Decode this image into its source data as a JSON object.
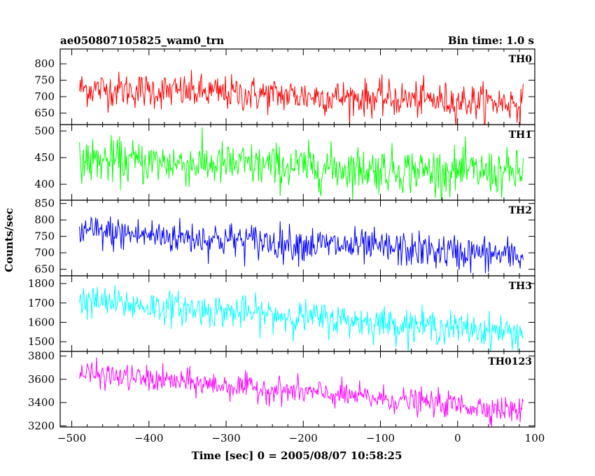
{
  "chart_data": {
    "type": "line",
    "title": "ae050807105825_wam0_trn",
    "subtitle": "Bin time: 1.0 s",
    "xlabel": "Time [sec] 0 = 2005/08/07 10:58:25",
    "ylabel": "Counts/sec",
    "xlim": [
      -515,
      100
    ],
    "x_ticks": [
      -500,
      -400,
      -300,
      -200,
      -100,
      0,
      100
    ],
    "x_range": [
      -490,
      85
    ],
    "bin_time": 1.0,
    "grid": false,
    "panels": [
      {
        "name": "TH0",
        "color": "#ff0000",
        "ylim": [
          615,
          845
        ],
        "yticks": [
          650,
          700,
          750,
          800
        ],
        "trend_start": 725,
        "trend_end": 680,
        "noise_sd": 27
      },
      {
        "name": "TH1",
        "color": "#00ff00",
        "ylim": [
          370,
          512
        ],
        "yticks": [
          400,
          450,
          500
        ],
        "trend_start": 445,
        "trend_end": 420,
        "noise_sd": 21
      },
      {
        "name": "TH2",
        "color": "#0000ff",
        "ylim": [
          630,
          860
        ],
        "yticks": [
          650,
          700,
          750,
          800,
          850
        ],
        "trend_start": 765,
        "trend_end": 690,
        "noise_sd": 27
      },
      {
        "name": "TH3",
        "color": "#00ffff",
        "ylim": [
          1450,
          1840
        ],
        "yticks": [
          1500,
          1600,
          1700,
          1800
        ],
        "trend_start": 1710,
        "trend_end": 1545,
        "noise_sd": 42
      },
      {
        "name": "TH0123",
        "color": "#ff00ff",
        "ylim": [
          3190,
          3840
        ],
        "yticks": [
          3200,
          3400,
          3600,
          3800
        ],
        "trend_start": 3650,
        "trend_end": 3330,
        "noise_sd": 55
      }
    ]
  }
}
